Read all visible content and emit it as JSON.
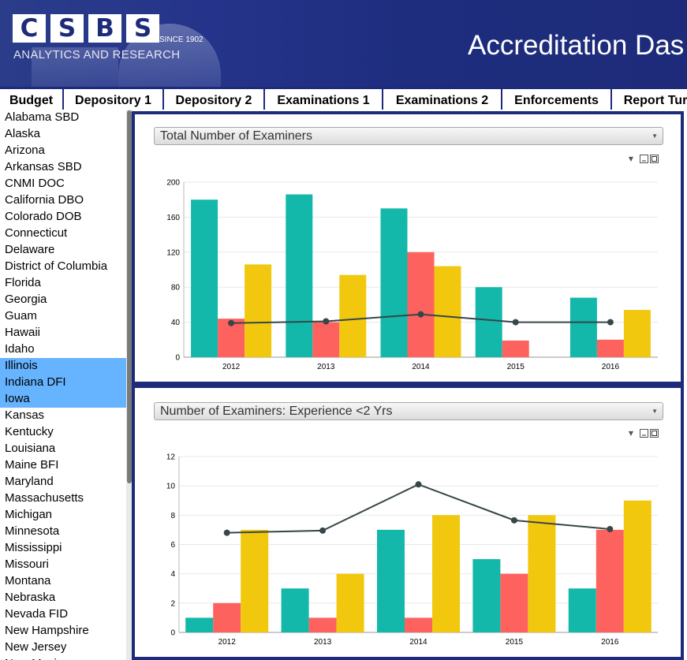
{
  "header": {
    "logo_letters": [
      "C",
      "S",
      "B",
      "S"
    ],
    "logo_since": "SINCE 1902",
    "logo_subtitle": "ANALYTICS AND RESEARCH",
    "title": "Accreditation Das"
  },
  "tabs": [
    "Budget",
    "Depository 1",
    "Depository 2",
    "Examinations 1",
    "Examinations 2",
    "Enforcements",
    "Report Tur"
  ],
  "states": [
    "Alabama SBD",
    "Alaska",
    "Arizona",
    "Arkansas SBD",
    "CNMI DOC",
    "California DBO",
    "Colorado DOB",
    "Connecticut",
    "Delaware",
    "District of Columbia",
    "Florida",
    "Georgia",
    "Guam",
    "Hawaii",
    "Idaho",
    "Illinois",
    "Indiana DFI",
    "Iowa",
    "Kansas",
    "Kentucky",
    "Louisiana",
    "Maine BFI",
    "Maryland",
    "Massachusetts",
    "Michigan",
    "Minnesota",
    "Mississippi",
    "Missouri",
    "Montana",
    "Nebraska",
    "Nevada FID",
    "New Hampshire",
    "New Jersey",
    "New Mexico"
  ],
  "selected_states": [
    "Illinois",
    "Indiana DFI",
    "Iowa"
  ],
  "colors": {
    "teal": "#13b8aa",
    "red": "#fd625e",
    "yellow": "#f2c80f",
    "line": "#374649",
    "accent": "#1e2b7a",
    "selection": "#66b3ff"
  },
  "panel1": {
    "selector": "Total Number of Examiners"
  },
  "panel2": {
    "selector": "Number of Examiners: Experience <2 Yrs"
  },
  "chart_data": [
    {
      "type": "bar",
      "categories": [
        "2012",
        "2013",
        "2014",
        "2015",
        "2016"
      ],
      "ylim": [
        0,
        200
      ],
      "yticks": [
        0,
        40,
        80,
        120,
        160,
        200
      ],
      "series": [
        {
          "color": "#13b8aa",
          "values": [
            180,
            186,
            170,
            80,
            68
          ]
        },
        {
          "color": "#fd625e",
          "values": [
            44,
            40,
            120,
            19,
            20
          ]
        },
        {
          "color": "#f2c80f",
          "values": [
            106,
            94,
            104,
            null,
            54
          ]
        }
      ],
      "line": {
        "color": "#374649",
        "values": [
          39,
          41,
          49,
          40,
          40
        ]
      },
      "grid": true
    },
    {
      "type": "bar",
      "categories": [
        "2012",
        "2013",
        "2014",
        "2015",
        "2016"
      ],
      "ylim": [
        0,
        12
      ],
      "yticks": [
        0,
        2,
        4,
        6,
        8,
        10,
        12
      ],
      "series": [
        {
          "color": "#13b8aa",
          "values": [
            1,
            3,
            7,
            5,
            3
          ]
        },
        {
          "color": "#fd625e",
          "values": [
            2,
            1,
            1,
            4,
            7
          ]
        },
        {
          "color": "#f2c80f",
          "values": [
            7,
            4,
            8,
            8,
            9
          ]
        }
      ],
      "line": {
        "color": "#374649",
        "values": [
          6.8,
          6.95,
          10.1,
          7.65,
          7.05
        ]
      },
      "grid": true
    }
  ]
}
